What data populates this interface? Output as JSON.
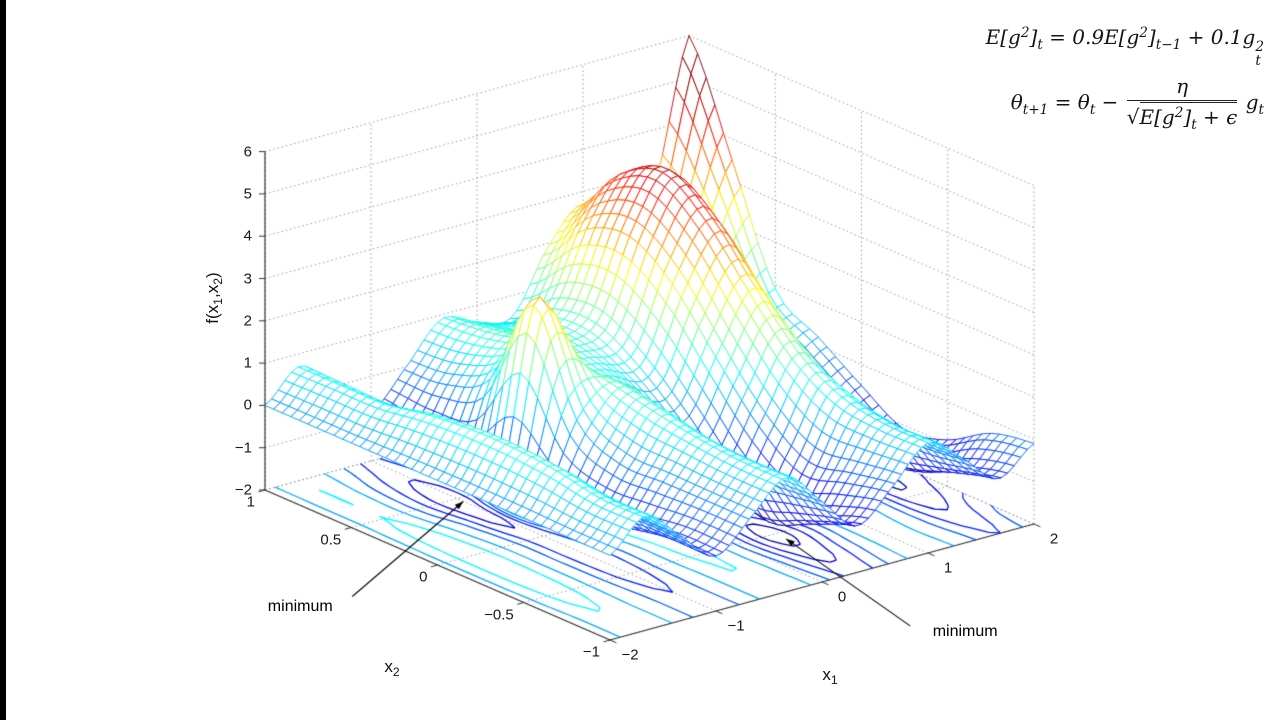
{
  "page": {
    "background": "#ffffff",
    "letterbox_color": "#000000"
  },
  "equations": {
    "line1": [
      {
        "t": "E[g"
      },
      {
        "t": "2",
        "s": "sup"
      },
      {
        "t": "]"
      },
      {
        "t": "t",
        "s": "sub"
      },
      {
        "t": " = 0.9E[g"
      },
      {
        "t": "2",
        "s": "sup"
      },
      {
        "t": "]"
      },
      {
        "t": "t−1",
        "s": "sub"
      },
      {
        "t": " + 0.1g"
      },
      {
        "ss": [
          "2",
          "t"
        ]
      }
    ],
    "line2": [
      {
        "t": "θ"
      },
      {
        "t": "t+1",
        "s": "sub"
      },
      {
        "t": " = θ"
      },
      {
        "t": "t",
        "s": "sub"
      },
      {
        "t": " − "
      },
      {
        "frac": {
          "num": [
            {
              "t": "η"
            }
          ],
          "sqrt": true,
          "den": [
            {
              "t": "E[g"
            },
            {
              "t": "2",
              "s": "sup"
            },
            {
              "t": "]"
            },
            {
              "t": "t",
              "s": "sub"
            },
            {
              "t": " + ϵ"
            }
          ]
        }
      },
      {
        "t": " g"
      },
      {
        "t": "t",
        "s": "sub"
      }
    ]
  },
  "chart_data": {
    "type": "surface",
    "title": "",
    "colormap": "jet",
    "color_range": [
      -1.7,
      4.8
    ],
    "grid": "dotted",
    "x1_axis": {
      "label": "x",
      "label_sub": "1",
      "range": [
        -2,
        2
      ],
      "ticks": [
        -2,
        -1,
        0,
        1,
        2
      ]
    },
    "x2_axis": {
      "label": "x",
      "label_sub": "2",
      "range": [
        -1,
        1
      ],
      "ticks": [
        1,
        0.5,
        0,
        -0.5,
        -1
      ]
    },
    "z_axis": {
      "label_parts": [
        "f(x",
        "1",
        ",x",
        "2",
        ")"
      ],
      "range": [
        -2,
        6
      ],
      "ticks": [
        -2,
        -1,
        0,
        1,
        2,
        3,
        4,
        5,
        6
      ]
    },
    "surface_grid": {
      "x1": [
        -2,
        -1.67,
        -1.33,
        -1,
        -0.67,
        -0.33,
        0,
        0.33,
        0.67,
        1,
        1.33,
        1.67,
        2
      ],
      "x2": [
        -1,
        -0.75,
        -0.5,
        -0.25,
        0,
        0.25,
        0.5,
        0.75,
        1
      ],
      "z": [
        [
          0,
          0.7,
          0,
          -0.7,
          0,
          0.7,
          -0.1,
          -0.9,
          -0.2,
          0.6,
          0,
          -0.7,
          -0.1
        ],
        [
          0,
          0.7,
          0,
          -0.7,
          0,
          0.7,
          -0.2,
          -1.3,
          -0.4,
          0.6,
          -0.1,
          -1.0,
          -0.3
        ],
        [
          0,
          0.9,
          0,
          -0.9,
          0,
          0.8,
          -0.3,
          -1.7,
          -0.6,
          0.8,
          0,
          -1.4,
          -0.9
        ],
        [
          0,
          1.0,
          0,
          -1.0,
          0,
          1.0,
          0,
          -1.2,
          0.1,
          1.4,
          0.3,
          -1.5,
          -1.1
        ],
        [
          0,
          1.0,
          0,
          -1.0,
          0.6,
          1.2,
          0.4,
          -0.2,
          1.3,
          2.5,
          1.0,
          -0.8,
          -0.5
        ],
        [
          0,
          0.9,
          -0.2,
          -1.1,
          2.9,
          1.2,
          0.8,
          0.7,
          2.6,
          3.7,
          2.1,
          0,
          0.2
        ],
        [
          0,
          0.7,
          -0.5,
          -1.4,
          0.7,
          1.2,
          1.0,
          1.3,
          3.3,
          4.4,
          2.7,
          0.7,
          0.9
        ],
        [
          0,
          0.7,
          -0.4,
          -1.1,
          0.1,
          1.0,
          0.9,
          1.2,
          3.0,
          3.9,
          2.5,
          1.8,
          3.5
        ],
        [
          0,
          0.7,
          -0.1,
          -0.8,
          0,
          0.9,
          0.6,
          0.5,
          1.9,
          2.7,
          1.7,
          2.6,
          6.0
        ]
      ]
    },
    "contour_levels": [
      -1.5,
      -1.1,
      -0.7,
      -0.3,
      0.2,
      0.7,
      1.3,
      2.1,
      3.1
    ],
    "annotations": [
      {
        "label": "minimum",
        "target": {
          "x1": -1.0,
          "x2": 0.5
        }
      },
      {
        "label": "minimum",
        "target": {
          "x1": 0.4,
          "x2": -0.5
        }
      }
    ]
  }
}
